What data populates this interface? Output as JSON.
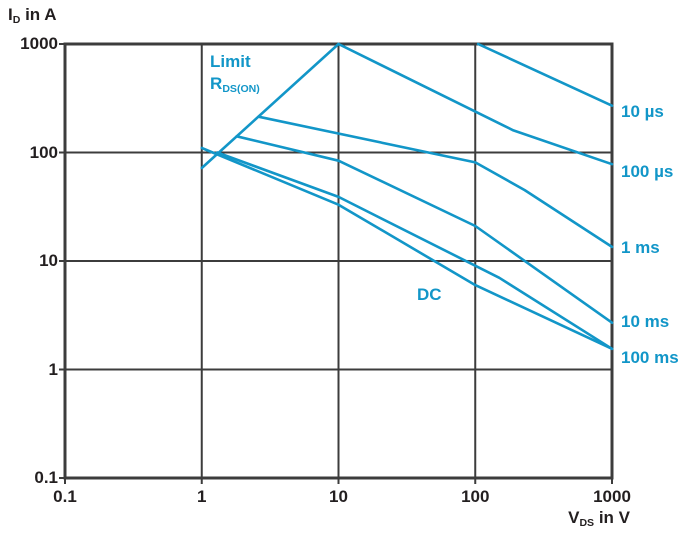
{
  "chart_data": {
    "type": "line",
    "title": "",
    "xlabel": {
      "main": "V",
      "sub": "DS",
      "rest": " in V"
    },
    "ylabel": {
      "main": "I",
      "sub": "D",
      "rest": " in A"
    },
    "x_scale": "log",
    "y_scale": "log",
    "xlim": [
      0.1,
      1000
    ],
    "ylim": [
      0.1,
      1000
    ],
    "grid": true,
    "x_ticks": [
      0.1,
      1,
      10,
      100,
      1000
    ],
    "y_ticks": [
      1000,
      100,
      10,
      1,
      0.1
    ],
    "x_tick_labels": [
      "0.1",
      "1",
      "10",
      "100",
      "1000"
    ],
    "y_tick_labels": [
      "1000",
      "100",
      "10",
      "1",
      "0.1"
    ],
    "legend_position": "right-outside",
    "series": [
      {
        "name": "limit-rdson",
        "label": "",
        "points": [
          [
            1,
            72
          ],
          [
            10,
            1000
          ]
        ]
      },
      {
        "name": "t-10us",
        "label": "10 µs",
        "label_at_I": 236,
        "points": [
          [
            105,
            1000
          ],
          [
            1000,
            270
          ]
        ]
      },
      {
        "name": "t-100us",
        "label": "100 µs",
        "label_at_I": 66,
        "points": [
          [
            10,
            1000
          ],
          [
            190,
            160
          ],
          [
            1000,
            78
          ]
        ]
      },
      {
        "name": "t-1ms",
        "label": "1 ms",
        "label_at_I": 13.2,
        "points": [
          [
            2.6,
            214
          ],
          [
            100,
            81
          ],
          [
            230,
            45
          ],
          [
            1000,
            13.5
          ]
        ]
      },
      {
        "name": "t-10ms",
        "label": "10 ms",
        "label_at_I": 2.74,
        "points": [
          [
            1.8,
            141
          ],
          [
            10,
            84
          ],
          [
            100,
            21
          ],
          [
            1000,
            2.7
          ]
        ]
      },
      {
        "name": "t-100ms",
        "label": "100 ms",
        "label_at_I": 1.28,
        "points": [
          [
            1.3,
            100
          ],
          [
            10,
            39
          ],
          [
            150,
            7
          ],
          [
            1000,
            1.55
          ]
        ]
      },
      {
        "name": "dc",
        "label": "",
        "points": [
          [
            1,
            110
          ],
          [
            10,
            33
          ],
          [
            100,
            6
          ],
          [
            1000,
            1.55
          ]
        ]
      }
    ],
    "annotations": [
      {
        "name": "limit-label",
        "line1": "Limit",
        "r_main": "R",
        "r_sub": "DS(ON)",
        "V": 1.15,
        "I": 860
      },
      {
        "name": "dc-label",
        "text": "DC",
        "V": 37.5,
        "I": 6.1
      }
    ]
  },
  "colors": {
    "accent": "#1296c8",
    "axis": "#3c3c3c",
    "text": "#231f20",
    "background": "#ffffff"
  }
}
